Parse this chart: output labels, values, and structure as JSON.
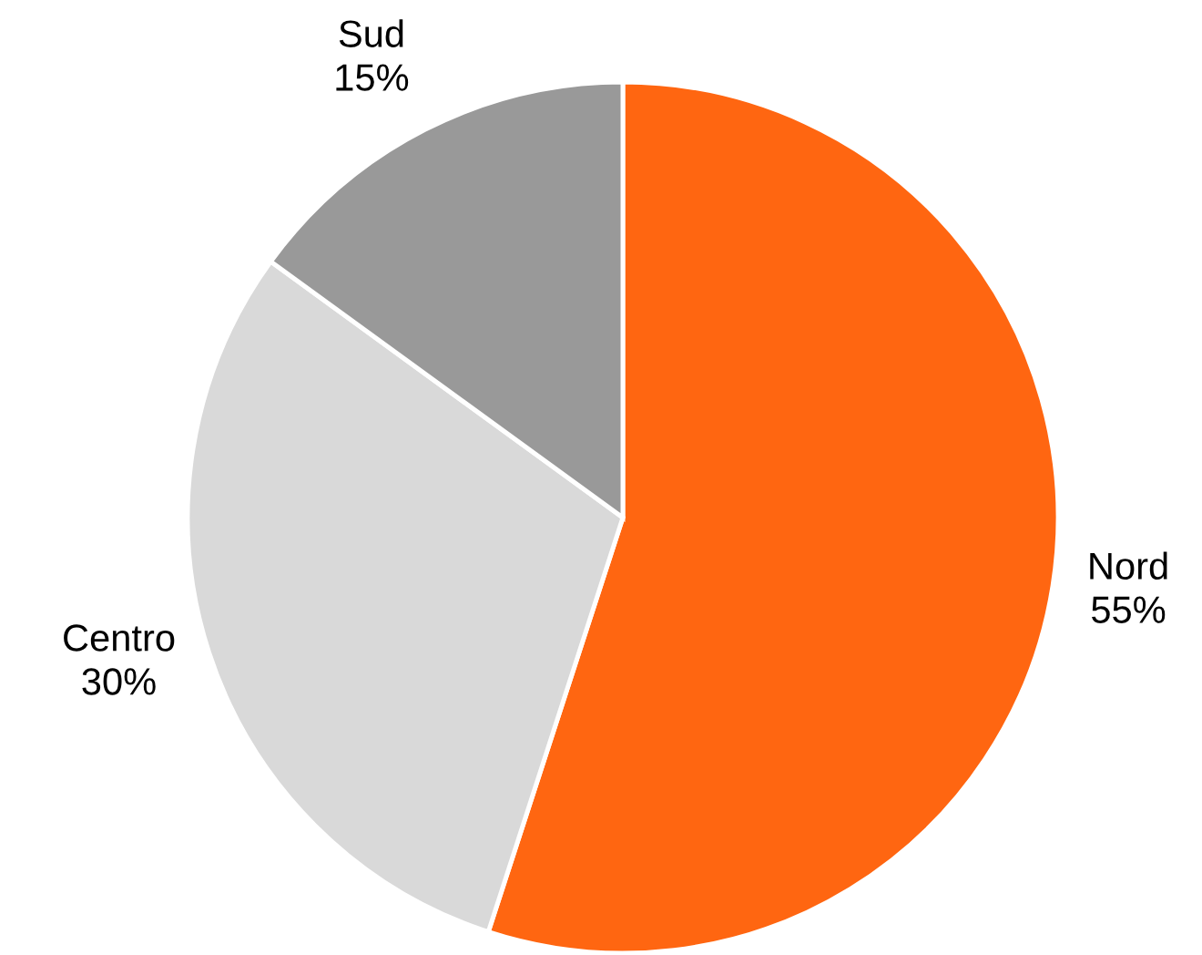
{
  "chart_data": {
    "type": "pie",
    "categories": [
      "Nord",
      "Centro",
      "Sud"
    ],
    "values": [
      55,
      30,
      15
    ],
    "colors": [
      "#ff6611",
      "#d9d9d9",
      "#999999"
    ],
    "value_labels": [
      "55%",
      "30%",
      "15%"
    ]
  }
}
